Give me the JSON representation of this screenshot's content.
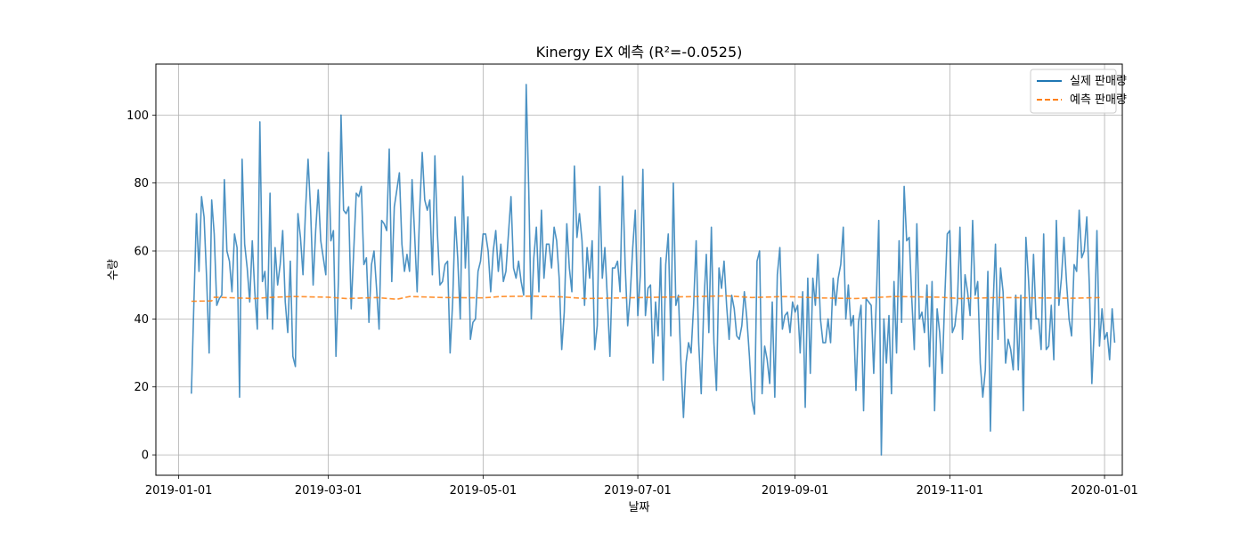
{
  "chart_data": {
    "type": "line",
    "title": "Kinergy EX 예측 (R²=-0.0525)",
    "xlabel": "날짜",
    "ylabel": "수량",
    "x_range": [
      "2018-12-23",
      "2020-01-08"
    ],
    "ylim": [
      -6,
      115
    ],
    "grid": true,
    "legend_position": "top-right",
    "x_ticks": [
      "2019-01-01",
      "2019-03-01",
      "2019-05-01",
      "2019-07-01",
      "2019-09-01",
      "2019-11-01",
      "2020-01-01"
    ],
    "y_ticks": [
      0,
      20,
      40,
      60,
      80,
      100
    ],
    "colors": {
      "actual": "#1f77b4",
      "predicted": "#ff7f0e"
    },
    "series": [
      {
        "name": "실제 판매량",
        "style": "solid",
        "x_start": "2019-01-06",
        "step_days": 1,
        "values": [
          18,
          45,
          71,
          54,
          76,
          70,
          52,
          30,
          75,
          65,
          44,
          46,
          47,
          81,
          60,
          57,
          48,
          65,
          61,
          17,
          87,
          62,
          55,
          45,
          63,
          48,
          37,
          98,
          51,
          54,
          40,
          77,
          37,
          61,
          50,
          56,
          66,
          45,
          36,
          57,
          29,
          26,
          71,
          64,
          53,
          72,
          87,
          72,
          50,
          66,
          78,
          63,
          58,
          53,
          89,
          63,
          66,
          29,
          52,
          100,
          72,
          71,
          73,
          43,
          60,
          77,
          76,
          79,
          56,
          58,
          39,
          56,
          60,
          49,
          37,
          69,
          68,
          66,
          90,
          51,
          73,
          78,
          83,
          62,
          54,
          59,
          54,
          81,
          65,
          48,
          72,
          89,
          75,
          72,
          75,
          53,
          88,
          65,
          50,
          51,
          56,
          57,
          30,
          45,
          70,
          58,
          40,
          82,
          55,
          70,
          34,
          39,
          40,
          54,
          57,
          65,
          65,
          60,
          48,
          60,
          66,
          54,
          62,
          51,
          54,
          65,
          76,
          55,
          52,
          57,
          51,
          47,
          109,
          78,
          40,
          58,
          67,
          48,
          72,
          52,
          62,
          62,
          55,
          67,
          63,
          52,
          31,
          42,
          68,
          55,
          48,
          85,
          64,
          71,
          63,
          44,
          61,
          52,
          63,
          31,
          38,
          79,
          52,
          61,
          46,
          29,
          55,
          55,
          57,
          48,
          82,
          56,
          38,
          47,
          61,
          72,
          41,
          53,
          84,
          41,
          49,
          50,
          27,
          45,
          35,
          58,
          22,
          56,
          65,
          35,
          80,
          44,
          47,
          27,
          11,
          27,
          33,
          30,
          44,
          63,
          33,
          18,
          44,
          59,
          36,
          67,
          33,
          19,
          55,
          49,
          57,
          44,
          34,
          47,
          43,
          35,
          34,
          38,
          48,
          40,
          29,
          16,
          12,
          57,
          60,
          18,
          32,
          28,
          21,
          45,
          17,
          53,
          61,
          37,
          41,
          42,
          36,
          45,
          42,
          44,
          30,
          48,
          14,
          52,
          24,
          52,
          44,
          59,
          40,
          33,
          33,
          40,
          33,
          52,
          44,
          52,
          56,
          67,
          40,
          50,
          38,
          41,
          19,
          39,
          44,
          13,
          46,
          45,
          44,
          24,
          45,
          69,
          0,
          40,
          27,
          41,
          18,
          51,
          30,
          63,
          39,
          79,
          63,
          64,
          46,
          31,
          68,
          40,
          42,
          36,
          50,
          26,
          51,
          13,
          43,
          36,
          24,
          46,
          65,
          66,
          36,
          38,
          45,
          67,
          34,
          53,
          48,
          41,
          69,
          47,
          51,
          27,
          17,
          25,
          54,
          7,
          43,
          62,
          34,
          55,
          48,
          27,
          34,
          31,
          25,
          47,
          25,
          47,
          13,
          64,
          52,
          37,
          59,
          40,
          40,
          31,
          65,
          31,
          32,
          44,
          28,
          69,
          44,
          52,
          64,
          51,
          40,
          35,
          56,
          54,
          72,
          58,
          60,
          70,
          50,
          21,
          38,
          66,
          32,
          43,
          34,
          36,
          28,
          43,
          33
        ]
      },
      {
        "name": "예측 판매량",
        "style": "dashed",
        "points": [
          [
            "2019-01-06",
            45.2
          ],
          [
            "2019-01-14",
            45.3
          ],
          [
            "2019-01-15",
            46.4
          ],
          [
            "2019-01-31",
            46.0
          ],
          [
            "2019-02-05",
            46.3
          ],
          [
            "2019-02-15",
            46.6
          ],
          [
            "2019-03-01",
            46.4
          ],
          [
            "2019-03-08",
            46.0
          ],
          [
            "2019-03-20",
            46.3
          ],
          [
            "2019-03-28",
            45.8
          ],
          [
            "2019-04-02",
            46.6
          ],
          [
            "2019-04-15",
            46.3
          ],
          [
            "2019-05-01",
            46.2
          ],
          [
            "2019-05-08",
            46.6
          ],
          [
            "2019-05-20",
            46.7
          ],
          [
            "2019-06-01",
            46.5
          ],
          [
            "2019-06-10",
            46.0
          ],
          [
            "2019-06-25",
            46.2
          ],
          [
            "2019-07-10",
            46.4
          ],
          [
            "2019-07-25",
            46.6
          ],
          [
            "2019-08-05",
            46.8
          ],
          [
            "2019-08-15",
            46.3
          ],
          [
            "2019-08-28",
            46.6
          ],
          [
            "2019-09-10",
            46.2
          ],
          [
            "2019-09-25",
            46.0
          ],
          [
            "2019-10-10",
            46.6
          ],
          [
            "2019-10-28",
            46.4
          ],
          [
            "2019-11-05",
            46.0
          ],
          [
            "2019-11-20",
            46.3
          ],
          [
            "2019-12-05",
            46.2
          ],
          [
            "2019-12-20",
            46.1
          ],
          [
            "2019-12-31",
            46.3
          ]
        ]
      }
    ]
  }
}
